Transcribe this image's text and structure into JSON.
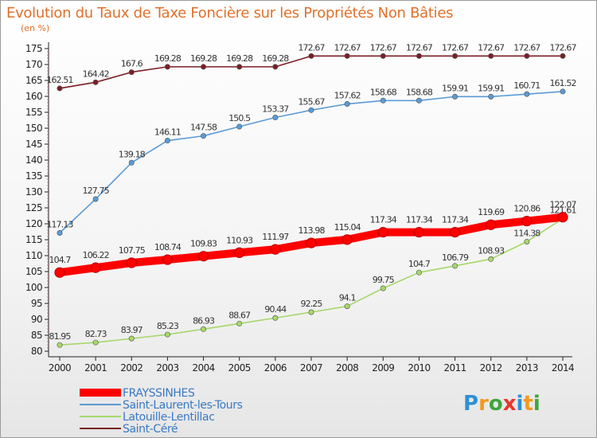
{
  "chart_data": {
    "type": "line",
    "title": "Evolution du Taux de Taxe Foncière sur les Propriétés Non Bâties",
    "unit_label": "(en %)",
    "x": [
      "2000",
      "2001",
      "2002",
      "2003",
      "2004",
      "2005",
      "2006",
      "2007",
      "2008",
      "2009",
      "2010",
      "2011",
      "2012",
      "2013",
      "2014"
    ],
    "ylim": [
      80,
      175
    ],
    "yticks": [
      80,
      85,
      90,
      95,
      100,
      105,
      110,
      115,
      120,
      125,
      130,
      135,
      140,
      145,
      150,
      155,
      160,
      165,
      170,
      175
    ],
    "grid": false,
    "legend_position": "bottom-left",
    "series": [
      {
        "name": "FRAYSSINHES",
        "color": "#ff0000",
        "values": [
          104.7,
          106.22,
          107.75,
          108.74,
          109.83,
          110.93,
          111.97,
          113.98,
          115.04,
          117.34,
          117.34,
          117.34,
          119.69,
          120.86,
          122.07
        ],
        "labels": [
          "104.7",
          "106.22",
          "107.75",
          "108.74",
          "109.83",
          "110.93",
          "111.97",
          "113.98",
          "115.04",
          "117.34",
          "117.34",
          "117.34",
          "119.69",
          "120.86",
          "122.07"
        ]
      },
      {
        "name": "Saint-Laurent-les-Tours",
        "color": "#5b9bd5",
        "values": [
          117.13,
          127.75,
          139.18,
          146.11,
          147.58,
          150.5,
          153.37,
          155.67,
          157.62,
          158.68,
          158.68,
          159.91,
          159.91,
          160.71,
          161.52
        ],
        "labels": [
          "117.13",
          "127.75",
          "139.18",
          "146.11",
          "147.58",
          "150.5",
          "153.37",
          "155.67",
          "157.62",
          "158.68",
          "158.68",
          "159.91",
          "159.91",
          "160.71",
          "161.52"
        ]
      },
      {
        "name": "Latouille-Lentillac",
        "color": "#a6d86a",
        "values": [
          81.95,
          82.73,
          83.97,
          85.23,
          86.93,
          88.67,
          90.44,
          92.25,
          94.1,
          99.75,
          104.7,
          106.79,
          108.93,
          114.38,
          121.61
        ],
        "labels": [
          "81.95",
          "82.73",
          "83.97",
          "85.23",
          "86.93",
          "88.67",
          "90.44",
          "92.25",
          "94.1",
          "99.75",
          "104.7",
          "106.79",
          "108.93",
          "114.38",
          "121.61"
        ]
      },
      {
        "name": "Saint-Céré",
        "color": "#7a1f24",
        "values": [
          162.51,
          164.42,
          167.6,
          169.28,
          169.28,
          169.28,
          169.28,
          172.67,
          172.67,
          172.67,
          172.67,
          172.67,
          172.67,
          172.67,
          172.67
        ],
        "labels": [
          "162.51",
          "164.42",
          "167.6",
          "169.28",
          "169.28",
          "169.28",
          "169.28",
          "172.67",
          "172.67",
          "172.67",
          "172.67",
          "172.67",
          "172.67",
          "172.67",
          "172.67"
        ]
      }
    ]
  },
  "brand": {
    "letters": [
      "P",
      "r",
      "o",
      "x",
      "i",
      "t",
      "i"
    ],
    "colors": [
      "#2f8fd6",
      "#f29a1e",
      "#3fa53f",
      "#e8352c",
      "#2f8fd6",
      "#f29a1e",
      "#3fa53f"
    ]
  }
}
